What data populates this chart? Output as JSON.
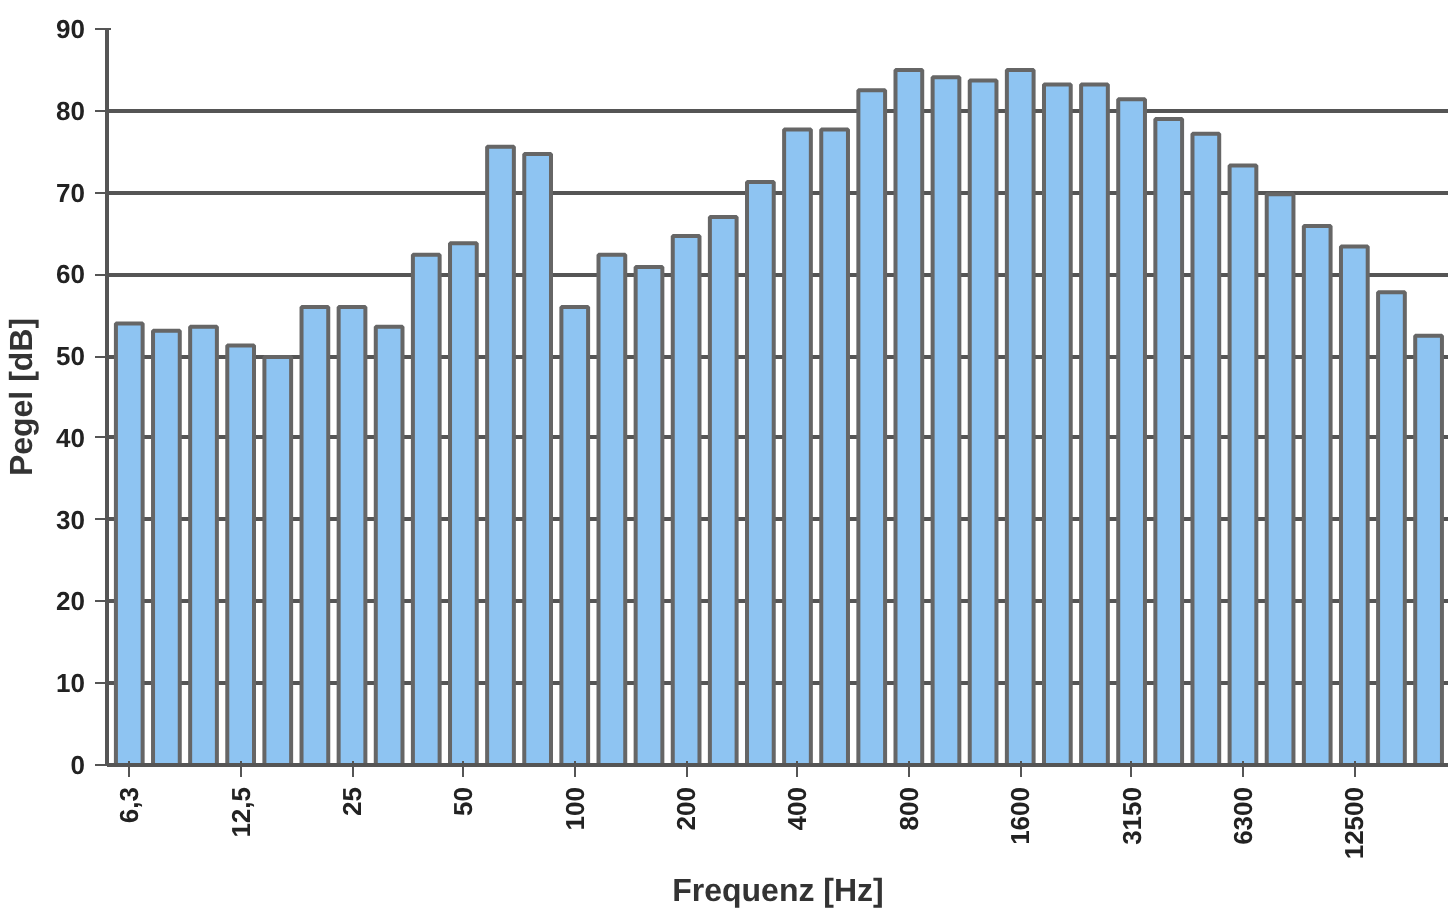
{
  "chart_data": {
    "type": "bar",
    "xlabel": "Frequenz [Hz]",
    "ylabel": "Pegel [dB]",
    "categories": [
      "6,3",
      null,
      null,
      "12,5",
      null,
      null,
      "25",
      null,
      null,
      "50",
      null,
      null,
      "100",
      null,
      null,
      "200",
      null,
      null,
      "400",
      null,
      null,
      "800",
      null,
      null,
      "1600",
      null,
      null,
      "3150",
      null,
      null,
      "6300",
      null,
      null,
      "12500",
      null,
      null
    ],
    "values": [
      54,
      53.1,
      53.6,
      51.3,
      49.9,
      56,
      56,
      53.6,
      62.4,
      63.8,
      75.6,
      74.7,
      56,
      62.4,
      60.9,
      64.7,
      67,
      71.3,
      77.7,
      77.7,
      82.5,
      85,
      84.1,
      83.7,
      85,
      83.2,
      83.2,
      81.4,
      79,
      77.2,
      73.3,
      69.8,
      65.9,
      63.4,
      57.8,
      52.5
    ],
    "color": "#8ec4f2",
    "ylim": [
      0,
      90
    ],
    "yticks": [
      0,
      10,
      20,
      30,
      40,
      50,
      60,
      70,
      80,
      90
    ],
    "grid": "y"
  }
}
